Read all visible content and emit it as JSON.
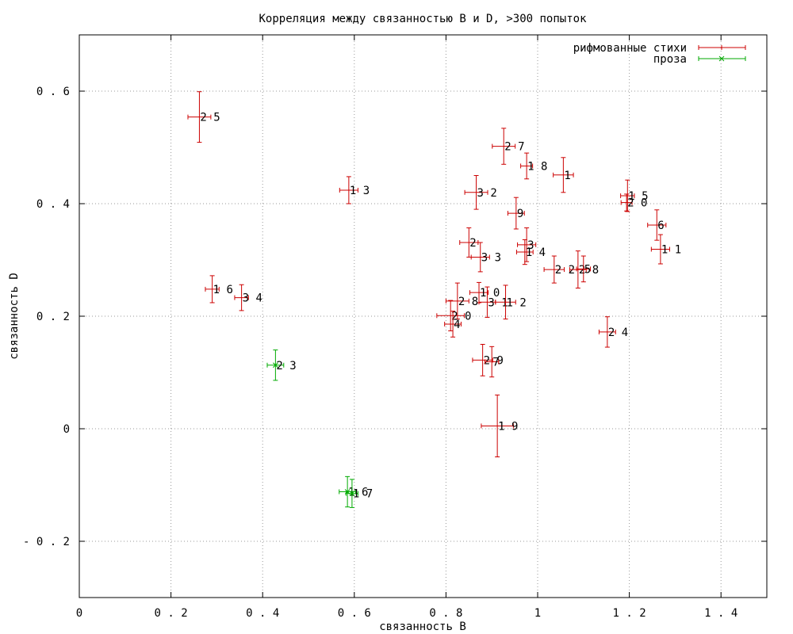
{
  "chart_data": {
    "type": "scatter",
    "title": "Корреляция между связанностью B и D, >300 попыток",
    "xlabel": "связанность B",
    "ylabel": "связанность D",
    "xlim": [
      0,
      1.5
    ],
    "ylim": [
      -0.3,
      0.7
    ],
    "x_ticks": [
      0,
      0.2,
      0.4,
      0.6,
      0.8,
      1,
      1.2,
      1.4
    ],
    "x_tick_labels": [
      "0",
      "0.2",
      "0.4",
      "0.6",
      "0.8",
      "1",
      "1.2",
      "1.4"
    ],
    "y_ticks": [
      -0.2,
      0,
      0.2,
      0.4,
      0.6
    ],
    "y_tick_labels": [
      "-0.2",
      "0",
      "0.2",
      "0.4",
      "0.6"
    ],
    "grid": true,
    "legend_position": "top-right",
    "series": [
      {
        "name": "рифмованные стихи",
        "color": "#cc0000",
        "marker": "plus",
        "points": [
          {
            "label": "25",
            "x": 0.262,
            "y": 0.554,
            "xerr": 0.025,
            "yerr": 0.045
          },
          {
            "label": "13",
            "x": 0.588,
            "y": 0.424,
            "xerr": 0.02,
            "yerr": 0.024
          },
          {
            "label": "16",
            "x": 0.29,
            "y": 0.248,
            "xerr": 0.015,
            "yerr": 0.024
          },
          {
            "label": "34",
            "x": 0.354,
            "y": 0.233,
            "xerr": 0.015,
            "yerr": 0.023
          },
          {
            "label": "27",
            "x": 0.926,
            "y": 0.502,
            "xerr": 0.025,
            "yerr": 0.032
          },
          {
            "label": "18",
            "x": 0.976,
            "y": 0.467,
            "xerr": 0.013,
            "yerr": 0.023
          },
          {
            "label": "1",
            "x": 1.056,
            "y": 0.451,
            "xerr": 0.022,
            "yerr": 0.031
          },
          {
            "label": "32",
            "x": 0.866,
            "y": 0.42,
            "xerr": 0.025,
            "yerr": 0.03
          },
          {
            "label": "9",
            "x": 0.953,
            "y": 0.383,
            "xerr": 0.018,
            "yerr": 0.028
          },
          {
            "label": "15",
            "x": 1.196,
            "y": 0.414,
            "xerr": 0.015,
            "yerr": 0.028
          },
          {
            "label": "20",
            "x": 1.194,
            "y": 0.402,
            "xerr": 0.012,
            "yerr": 0.015
          },
          {
            "label": "6",
            "x": 1.26,
            "y": 0.362,
            "xerr": 0.02,
            "yerr": 0.027
          },
          {
            "label": "11",
            "x": 1.268,
            "y": 0.319,
            "xerr": 0.02,
            "yerr": 0.026
          },
          {
            "label": "2",
            "x": 0.85,
            "y": 0.331,
            "xerr": 0.02,
            "yerr": 0.026
          },
          {
            "label": "3",
            "x": 0.976,
            "y": 0.327,
            "xerr": 0.02,
            "yerr": 0.03
          },
          {
            "label": "33",
            "x": 0.875,
            "y": 0.305,
            "xerr": 0.02,
            "yerr": 0.026
          },
          {
            "label": "14",
            "x": 0.972,
            "y": 0.314,
            "xerr": 0.018,
            "yerr": 0.022
          },
          {
            "label": "22",
            "x": 1.036,
            "y": 0.283,
            "xerr": 0.022,
            "yerr": 0.024
          },
          {
            "label": "28",
            "x": 1.088,
            "y": 0.283,
            "xerr": 0.018,
            "yerr": 0.033
          },
          {
            "label": "5",
            "x": 1.1,
            "y": 0.284,
            "xerr": 0.015,
            "yerr": 0.023
          },
          {
            "label": "10",
            "x": 0.872,
            "y": 0.242,
            "xerr": 0.02,
            "yerr": 0.018
          },
          {
            "label": "28",
            "x": 0.825,
            "y": 0.227,
            "xerr": 0.025,
            "yerr": 0.032
          },
          {
            "label": "31",
            "x": 0.89,
            "y": 0.225,
            "xerr": 0.018,
            "yerr": 0.027
          },
          {
            "label": "12",
            "x": 0.93,
            "y": 0.225,
            "xerr": 0.022,
            "yerr": 0.03
          },
          {
            "label": "20",
            "x": 0.81,
            "y": 0.201,
            "xerr": 0.03,
            "yerr": 0.027
          },
          {
            "label": "4",
            "x": 0.815,
            "y": 0.186,
            "xerr": 0.018,
            "yerr": 0.023
          },
          {
            "label": "24",
            "x": 1.152,
            "y": 0.172,
            "xerr": 0.018,
            "yerr": 0.027
          },
          {
            "label": "29",
            "x": 0.88,
            "y": 0.122,
            "xerr": 0.022,
            "yerr": 0.028
          },
          {
            "label": "7",
            "x": 0.9,
            "y": 0.119,
            "xerr": 0.015,
            "yerr": 0.027
          },
          {
            "label": "19",
            "x": 0.912,
            "y": 0.005,
            "xerr": 0.035,
            "yerr": 0.055
          }
        ]
      },
      {
        "name": "проза",
        "color": "#00aa00",
        "marker": "cross",
        "points": [
          {
            "label": "23",
            "x": 0.428,
            "y": 0.113,
            "xerr": 0.018,
            "yerr": 0.027
          },
          {
            "label": "16",
            "x": 0.585,
            "y": -0.112,
            "xerr": 0.018,
            "yerr": 0.027
          },
          {
            "label": "17",
            "x": 0.595,
            "y": -0.115,
            "xerr": 0.013,
            "yerr": 0.025
          }
        ]
      }
    ]
  }
}
